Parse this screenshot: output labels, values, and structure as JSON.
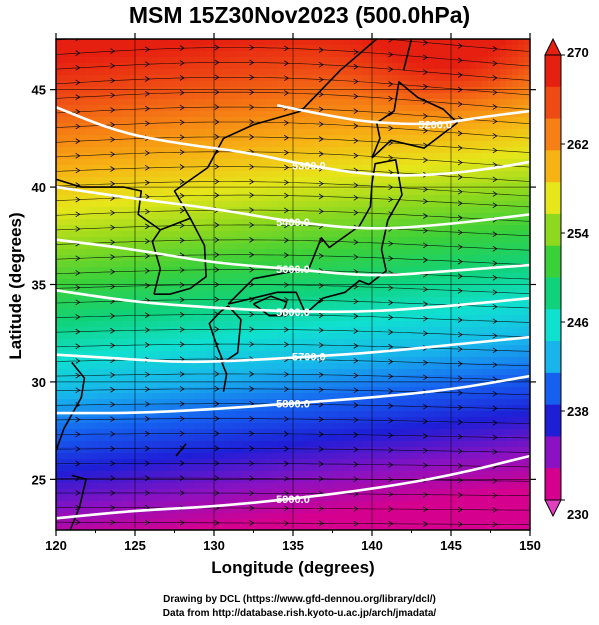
{
  "title": "MSM 15Z30Nov2023 (500.0hPa)",
  "xlabel": "Longitude (degrees)",
  "ylabel": "Latitude  (degrees)",
  "credits": [
    "Drawing by DCL (https://www.gfd-dennou.org/library/dcl/)",
    "Data from http://database.rish.kyoto-u.ac.jp/arch/jmadata/"
  ],
  "chart_data": {
    "type": "map",
    "lon_range": [
      120,
      150
    ],
    "lat_range": [
      22.4,
      47.6
    ],
    "x_ticks": [
      "120",
      "125",
      "130",
      "135",
      "140",
      "145",
      "150"
    ],
    "x_tick_values": [
      120,
      125,
      130,
      135,
      140,
      145,
      150
    ],
    "y_ticks": [
      "25",
      "30",
      "35",
      "40",
      "45"
    ],
    "y_tick_values": [
      25,
      30,
      35,
      40,
      45
    ],
    "colorbar": {
      "min": 230,
      "max": 270,
      "labels": [
        "270",
        "262",
        "254",
        "246",
        "238",
        "230"
      ],
      "label_values": [
        270,
        262,
        254,
        246,
        238,
        230
      ],
      "colors": [
        "#d6008e",
        "#8a12c2",
        "#1e1ed6",
        "#1660f0",
        "#18b4ec",
        "#10e0d0",
        "#10d27a",
        "#3ad03a",
        "#8ed81e",
        "#e6e61a",
        "#f6b414",
        "#f68014",
        "#ee4a14",
        "#e62010"
      ]
    },
    "contours": [
      {
        "label": "5200.0",
        "points": [
          [
            134,
            44.2
          ],
          [
            137,
            43.7
          ],
          [
            140,
            43.3
          ],
          [
            144,
            43.2
          ],
          [
            147,
            43.6
          ],
          [
            150,
            43.9
          ]
        ]
      },
      {
        "label": "5300.0",
        "points": [
          [
            120,
            44.1
          ],
          [
            124,
            42.8
          ],
          [
            128,
            42.2
          ],
          [
            132,
            41.8
          ],
          [
            136,
            41.1
          ],
          [
            140,
            40.6
          ],
          [
            144,
            40.6
          ],
          [
            148,
            41.0
          ],
          [
            150,
            41.3
          ]
        ]
      },
      {
        "label": "5400.0",
        "points": [
          [
            120,
            40.0
          ],
          [
            125,
            39.4
          ],
          [
            130,
            38.9
          ],
          [
            135,
            38.2
          ],
          [
            140,
            37.8
          ],
          [
            145,
            38.1
          ],
          [
            150,
            38.6
          ]
        ]
      },
      {
        "label": "5600.0",
        "points": [
          [
            120,
            37.3
          ],
          [
            125,
            36.8
          ],
          [
            130,
            36.1
          ],
          [
            135,
            35.8
          ],
          [
            140,
            35.4
          ],
          [
            145,
            35.7
          ],
          [
            150,
            36.0
          ]
        ]
      },
      {
        "label": "5600.0",
        "points": [
          [
            120,
            34.7
          ],
          [
            125,
            34.1
          ],
          [
            130,
            33.8
          ],
          [
            135,
            33.6
          ],
          [
            140,
            33.6
          ],
          [
            145,
            33.9
          ],
          [
            150,
            34.3
          ]
        ]
      },
      {
        "label": "5700.0",
        "points": [
          [
            120,
            31.4
          ],
          [
            124,
            31.2
          ],
          [
            128,
            31.0
          ],
          [
            132,
            31.1
          ],
          [
            136,
            31.3
          ],
          [
            140,
            31.5
          ],
          [
            145,
            31.9
          ],
          [
            150,
            32.3
          ]
        ]
      },
      {
        "label": "5800.0",
        "points": [
          [
            120,
            28.4
          ],
          [
            125,
            28.4
          ],
          [
            130,
            28.6
          ],
          [
            135,
            28.9
          ],
          [
            140,
            29.2
          ],
          [
            145,
            29.6
          ],
          [
            150,
            30.3
          ]
        ]
      },
      {
        "label": "5900.0",
        "points": [
          [
            120,
            23.0
          ],
          [
            125,
            23.4
          ],
          [
            130,
            23.6
          ],
          [
            135,
            24.0
          ],
          [
            140,
            24.5
          ],
          [
            145,
            25.2
          ],
          [
            150,
            26.2
          ]
        ]
      }
    ],
    "contour_label_texts": [
      "5200.0",
      "5300.0",
      "5400.0",
      "5600.0",
      "5600.0",
      "5700.0",
      "5800.0",
      "5900.0"
    ]
  }
}
